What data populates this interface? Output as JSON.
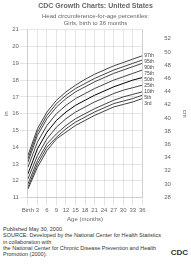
{
  "chart_data": {
    "type": "line",
    "title": "CDC Growth Charts: United States",
    "subtitle": "Head circumference-for-age percentiles:\nGirls, birth to 36 months",
    "xlabel": "Age (months)",
    "ylabel": "in",
    "y2label": "cm",
    "x": [
      0,
      3,
      6,
      9,
      12,
      15,
      18,
      21,
      24,
      27,
      30,
      33,
      36
    ],
    "xlim": [
      0,
      36
    ],
    "xticks": [
      {
        "value": 0,
        "label": "Birth"
      },
      3,
      6,
      9,
      12,
      15,
      18,
      21,
      24,
      27,
      30,
      33,
      36
    ],
    "ylim": [
      11,
      21
    ],
    "yticks": [
      11,
      12,
      13,
      14,
      15,
      16,
      17,
      18,
      19,
      20,
      21
    ],
    "y2lim": [
      27.94,
      53.34
    ],
    "y2ticks": [
      28,
      30,
      32,
      34,
      36,
      38,
      40,
      42,
      44,
      46,
      48,
      50,
      52
    ],
    "grid": true,
    "series": [
      {
        "name": "97th",
        "color": "#444444",
        "values": [
          13.5,
          15.1,
          16.1,
          16.8,
          17.3,
          17.7,
          18.05,
          18.35,
          18.6,
          18.85,
          19.05,
          19.25,
          19.45
        ]
      },
      {
        "name": "95th",
        "color": "#444444",
        "values": [
          13.3,
          14.9,
          15.9,
          16.6,
          17.1,
          17.5,
          17.8,
          18.1,
          18.35,
          18.6,
          18.8,
          19.0,
          19.2
        ]
      },
      {
        "name": "90th",
        "color": "#444444",
        "values": [
          13.1,
          14.7,
          15.7,
          16.4,
          16.9,
          17.3,
          17.6,
          17.9,
          18.15,
          18.4,
          18.6,
          18.8,
          19.0
        ]
      },
      {
        "name": "75th",
        "color": "#444444",
        "values": [
          12.8,
          14.3,
          15.3,
          16.0,
          16.5,
          16.9,
          17.2,
          17.5,
          17.75,
          18.0,
          18.2,
          18.4,
          18.6
        ]
      },
      {
        "name": "50th",
        "color": "#000000",
        "values": [
          12.4,
          13.9,
          14.9,
          15.6,
          16.1,
          16.5,
          16.8,
          17.1,
          17.35,
          17.6,
          17.8,
          18.0,
          18.15
        ]
      },
      {
        "name": "25th",
        "color": "#444444",
        "values": [
          12.1,
          13.5,
          14.5,
          15.2,
          15.7,
          16.1,
          16.4,
          16.7,
          16.95,
          17.2,
          17.4,
          17.55,
          17.7
        ]
      },
      {
        "name": "10th",
        "color": "#444444",
        "values": [
          11.8,
          13.2,
          14.2,
          14.8,
          15.3,
          15.7,
          16.0,
          16.3,
          16.55,
          16.8,
          17.0,
          17.15,
          17.3
        ]
      },
      {
        "name": "5th",
        "color": "#444444",
        "values": [
          11.6,
          13.0,
          14.0,
          14.6,
          15.1,
          15.5,
          15.8,
          16.1,
          16.35,
          16.6,
          16.75,
          16.9,
          17.1
        ]
      },
      {
        "name": "3rd",
        "color": "#444444",
        "values": [
          11.5,
          12.8,
          13.8,
          14.5,
          14.9,
          15.3,
          15.6,
          15.9,
          16.15,
          16.4,
          16.55,
          16.7,
          16.9
        ]
      }
    ],
    "annotations": [
      "Published May 30, 2000.",
      "SOURCE: Developed by the National Center for Health Statistics in collaboration with",
      "the National Center for Chronic Disease Prevention and Health Promotion (2000).",
      "CDC"
    ]
  }
}
